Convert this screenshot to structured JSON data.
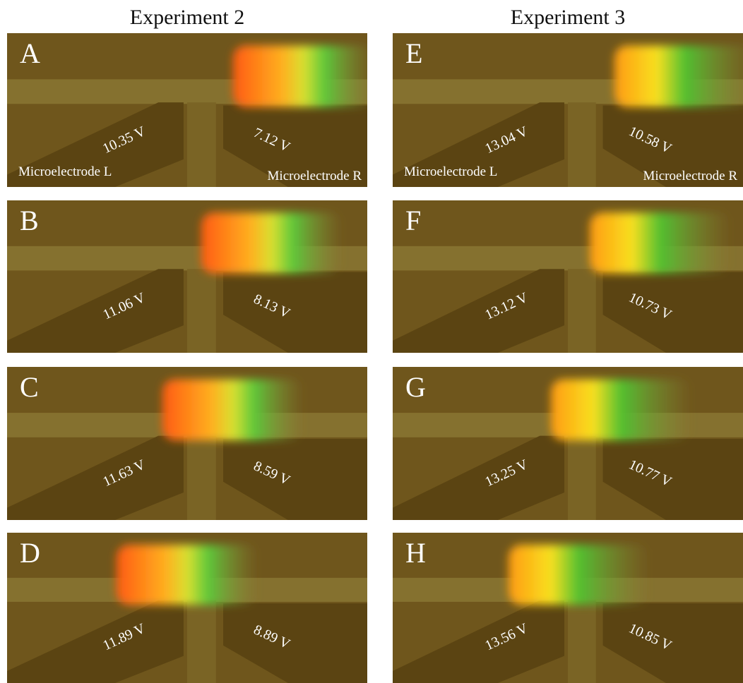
{
  "columns": [
    {
      "title": "Experiment 2",
      "panels": [
        {
          "letter": "A",
          "left_voltage": "10.35 V",
          "right_voltage": "7.12 V",
          "left_label": "Microelectrode L",
          "right_label": "Microelectrode R"
        },
        {
          "letter": "B",
          "left_voltage": "11.06 V",
          "right_voltage": "8.13 V"
        },
        {
          "letter": "C",
          "left_voltage": "11.63 V",
          "right_voltage": "8.59 V"
        },
        {
          "letter": "D",
          "left_voltage": "11.89 V",
          "right_voltage": "8.89 V"
        }
      ]
    },
    {
      "title": "Experiment 3",
      "panels": [
        {
          "letter": "E",
          "left_voltage": "13.04 V",
          "right_voltage": "10.58 V",
          "left_label": "Microelectrode L",
          "right_label": "Microelectrode R"
        },
        {
          "letter": "F",
          "left_voltage": "13.12 V",
          "right_voltage": "10.73 V"
        },
        {
          "letter": "G",
          "left_voltage": "13.25 V",
          "right_voltage": "10.77 V"
        },
        {
          "letter": "H",
          "left_voltage": "13.56 V",
          "right_voltage": "10.85 V"
        }
      ]
    }
  ]
}
